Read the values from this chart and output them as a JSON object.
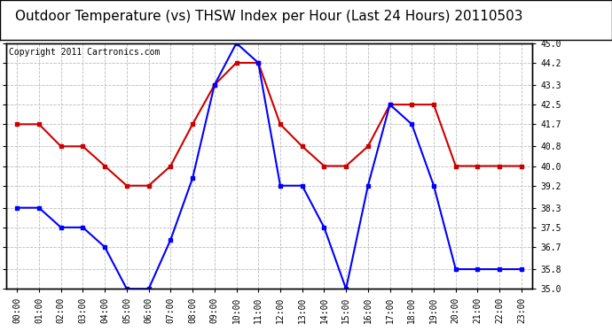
{
  "title": "Outdoor Temperature (vs) THSW Index per Hour (Last 24 Hours) 20110503",
  "copyright_text": "Copyright 2011 Cartronics.com",
  "hours": [
    "00:00",
    "01:00",
    "02:00",
    "03:00",
    "04:00",
    "05:00",
    "06:00",
    "07:00",
    "08:00",
    "09:00",
    "10:00",
    "11:00",
    "12:00",
    "13:00",
    "14:00",
    "15:00",
    "16:00",
    "17:00",
    "18:00",
    "19:00",
    "20:00",
    "21:00",
    "22:00",
    "23:00"
  ],
  "temp_blue": [
    38.3,
    38.3,
    37.5,
    37.5,
    36.7,
    35.0,
    35.0,
    37.0,
    39.5,
    43.3,
    45.0,
    44.2,
    39.2,
    39.2,
    37.5,
    35.0,
    39.2,
    42.5,
    41.7,
    39.2,
    35.8,
    35.8,
    35.8,
    35.8
  ],
  "thsw_red": [
    41.7,
    41.7,
    40.8,
    40.8,
    40.0,
    39.2,
    39.2,
    40.0,
    41.7,
    43.3,
    44.2,
    44.2,
    41.7,
    40.8,
    40.0,
    40.0,
    40.8,
    42.5,
    42.5,
    42.5,
    40.0,
    40.0,
    40.0,
    40.0
  ],
  "ylim_min": 35.0,
  "ylim_max": 45.0,
  "yticks": [
    35.0,
    35.8,
    36.7,
    37.5,
    38.3,
    39.2,
    40.0,
    40.8,
    41.7,
    42.5,
    43.3,
    44.2,
    45.0
  ],
  "blue_color": "#0000ff",
  "red_color": "#cc0000",
  "grid_color": "#bbbbbb",
  "bg_color": "#ffffff",
  "title_fontsize": 11,
  "copyright_fontsize": 7,
  "tick_fontsize": 7
}
